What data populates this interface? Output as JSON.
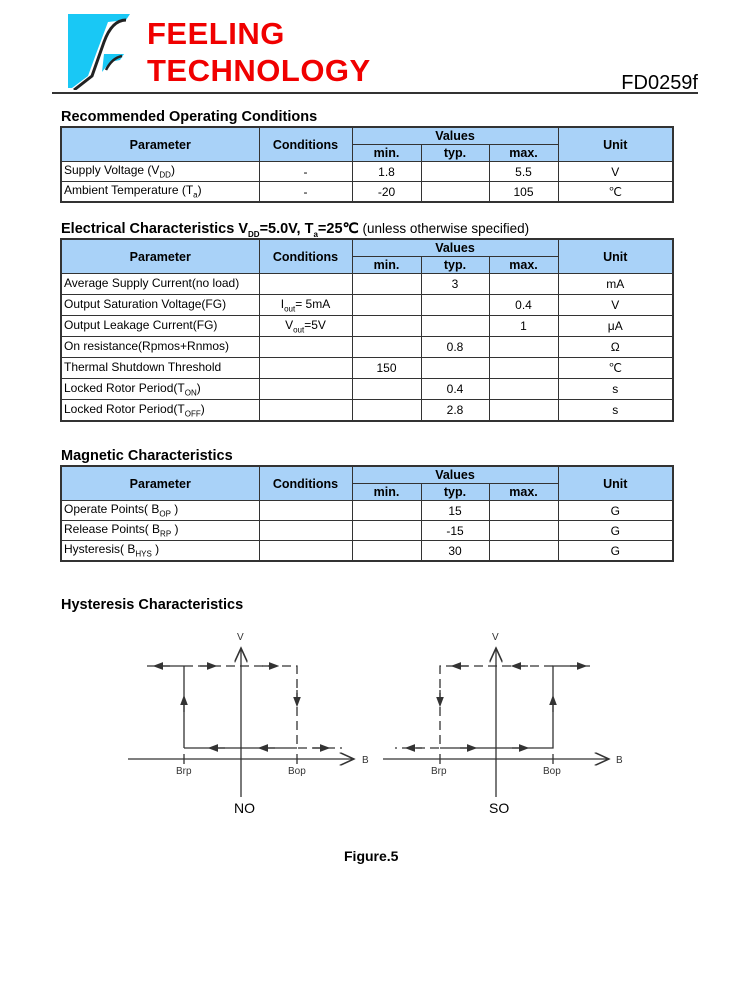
{
  "header": {
    "logo_line1": "FEELING",
    "logo_line2": "TECHNOLOGY",
    "doc_code": "FD0259f",
    "logo_color": "#f00000",
    "logo_icon_color": "#19c8f5"
  },
  "columns": {
    "parameter": "Parameter",
    "conditions": "Conditions",
    "values": "Values",
    "min": "min.",
    "typ": "typ.",
    "max": "max.",
    "unit": "Unit"
  },
  "roc": {
    "title": "Recommended Operating Conditions",
    "rows": [
      {
        "p": "Supply Voltage (V",
        "sub": "DD",
        "post": ")",
        "c": "-",
        "min": "1.8",
        "typ": "",
        "max": "5.5",
        "u": "V"
      },
      {
        "p": "Ambient Temperature (T",
        "sub": "a",
        "post": ")",
        "c": "-",
        "min": "-20",
        "typ": "",
        "max": "105",
        "u": "℃"
      }
    ]
  },
  "ec": {
    "title_pre": "Electrical Characteristics V",
    "title_sub1": "DD",
    "title_mid": "=5.0V, T",
    "title_sub2": "a",
    "title_post": "=25℃",
    "title_note": " (unless otherwise specified)",
    "rows": [
      {
        "p": "Average Supply Current(no load)",
        "sub": "",
        "post": "",
        "c": "",
        "csub": "",
        "cpost": "",
        "min": "",
        "typ": "3",
        "max": "",
        "u": "mA"
      },
      {
        "p": "Output Saturation Voltage(FG)",
        "sub": "",
        "post": "",
        "c": "I",
        "csub": "out",
        "cpost": "= 5mA",
        "min": "",
        "typ": "",
        "max": "0.4",
        "u": "V"
      },
      {
        "p": "Output Leakage Current(FG)",
        "sub": "",
        "post": "",
        "c": "V",
        "csub": "out",
        "cpost": "=5V",
        "min": "",
        "typ": "",
        "max": "1",
        "u": "μA"
      },
      {
        "p": "On resistance(Rpmos+Rnmos)",
        "sub": "",
        "post": "",
        "c": "",
        "csub": "",
        "cpost": "",
        "min": "",
        "typ": "0.8",
        "max": "",
        "u": "Ω"
      },
      {
        "p": "Thermal Shutdown Threshold",
        "sub": "",
        "post": "",
        "c": "",
        "csub": "",
        "cpost": "",
        "min": "150",
        "typ": "",
        "max": "",
        "u": "℃"
      },
      {
        "p": "Locked Rotor Period(T",
        "sub": "ON",
        "post": ")",
        "c": "",
        "csub": "",
        "cpost": "",
        "min": "",
        "typ": "0.4",
        "max": "",
        "u": "s"
      },
      {
        "p": "Locked Rotor Period(T",
        "sub": "OFF",
        "post": ")",
        "c": "",
        "csub": "",
        "cpost": "",
        "min": "",
        "typ": "2.8",
        "max": "",
        "u": "s"
      }
    ]
  },
  "mc": {
    "title": "Magnetic Characteristics",
    "rows": [
      {
        "p": "Operate Points( B",
        "sub": "OP",
        "post": " )",
        "c": "",
        "min": "",
        "typ": "15",
        "max": "",
        "u": "G"
      },
      {
        "p": "Release Points( B",
        "sub": "RP",
        "post": " )",
        "c": "",
        "min": "",
        "typ": "-15",
        "max": "",
        "u": "G"
      },
      {
        "p": "Hysteresis( B",
        "sub": "HYS",
        "post": " )",
        "c": "",
        "min": "",
        "typ": "30",
        "max": "",
        "u": "G"
      }
    ]
  },
  "hyst": {
    "title": "Hysteresis Characteristics",
    "v_label": "V",
    "b_label": "B",
    "brp": "Brp",
    "bop": "Bop",
    "left_caption": "NO",
    "right_caption": "SO",
    "figure_caption": "Figure.5"
  }
}
